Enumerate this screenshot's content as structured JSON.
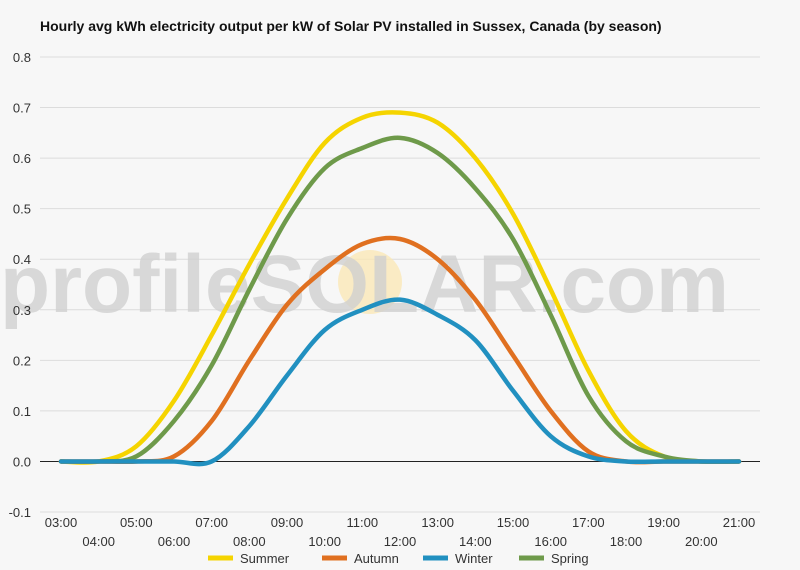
{
  "chart_data": {
    "type": "line",
    "title": "Hourly avg kWh electricity output per kW of Solar PV installed in Sussex, Canada (by season)",
    "xlabel": "",
    "ylabel": "",
    "x": [
      "03:00",
      "04:00",
      "05:00",
      "06:00",
      "07:00",
      "08:00",
      "09:00",
      "10:00",
      "11:00",
      "12:00",
      "13:00",
      "14:00",
      "15:00",
      "16:00",
      "17:00",
      "18:00",
      "19:00",
      "20:00",
      "21:00"
    ],
    "ylim": [
      -0.1,
      0.8
    ],
    "yticks": [
      "0.8",
      "0.7",
      "0.6",
      "0.5",
      "0.4",
      "0.3",
      "0.2",
      "0.1",
      "0.0",
      "-0.1"
    ],
    "grid": true,
    "legend_position": "bottom",
    "watermark": "profileSOLAR.com",
    "series": [
      {
        "name": "Summer",
        "color": "#f5d400",
        "values": [
          0.0,
          0.0,
          0.03,
          0.12,
          0.25,
          0.39,
          0.52,
          0.63,
          0.68,
          0.69,
          0.67,
          0.6,
          0.49,
          0.34,
          0.18,
          0.06,
          0.01,
          0.0,
          0.0
        ]
      },
      {
        "name": "Autumn",
        "color": "#e07020",
        "values": [
          0.0,
          0.0,
          0.0,
          0.01,
          0.08,
          0.2,
          0.31,
          0.38,
          0.43,
          0.44,
          0.4,
          0.32,
          0.21,
          0.1,
          0.02,
          0.0,
          0.0,
          0.0,
          0.0
        ]
      },
      {
        "name": "Winter",
        "color": "#2190c0",
        "values": [
          0.0,
          0.0,
          0.0,
          0.0,
          0.0,
          0.07,
          0.17,
          0.26,
          0.3,
          0.32,
          0.29,
          0.24,
          0.14,
          0.05,
          0.01,
          0.0,
          0.0,
          0.0,
          0.0
        ]
      },
      {
        "name": "Spring",
        "color": "#6e9a4a",
        "values": [
          0.0,
          0.0,
          0.01,
          0.08,
          0.19,
          0.34,
          0.48,
          0.58,
          0.62,
          0.64,
          0.61,
          0.54,
          0.44,
          0.29,
          0.13,
          0.04,
          0.01,
          0.0,
          0.0
        ]
      }
    ]
  }
}
